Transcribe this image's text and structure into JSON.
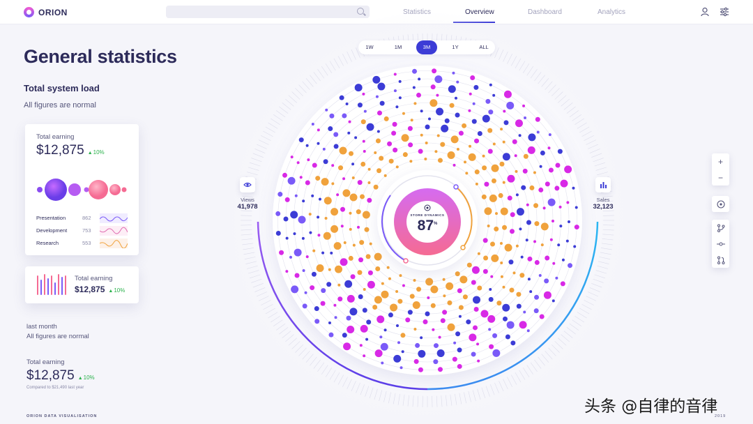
{
  "app": {
    "name": "ORION"
  },
  "nav": [
    {
      "label": "Statistics",
      "active": false
    },
    {
      "label": "Overview",
      "active": true
    },
    {
      "label": "Dashboard",
      "active": false
    },
    {
      "label": "Analytics",
      "active": false
    }
  ],
  "header": {
    "title": "General statistics",
    "subtitle": "Total system load",
    "note": "All figures are normal"
  },
  "earning_card": {
    "label": "Total earning",
    "value": "$12,875",
    "trend": "10%",
    "rows": [
      {
        "label": "Presentation",
        "value": "862"
      },
      {
        "label": "Development",
        "value": "753"
      },
      {
        "label": "Research",
        "value": "553"
      }
    ]
  },
  "earning_card_small": {
    "label": "Total earning",
    "value": "$12,875",
    "trend": "10%"
  },
  "last_month": {
    "label": "last month",
    "note": "All figures are normal"
  },
  "bottom_stat": {
    "label": "Total earning",
    "value": "$12,875",
    "trend": "10%",
    "compare": "Compared to $21,490 last year"
  },
  "periods": [
    {
      "label": "1W",
      "active": false
    },
    {
      "label": "1M",
      "active": false
    },
    {
      "label": "3M",
      "active": true
    },
    {
      "label": "1Y",
      "active": false
    },
    {
      "label": "ALL",
      "active": false
    }
  ],
  "views": {
    "label": "Views",
    "value": "41,978"
  },
  "sales": {
    "label": "Sales",
    "value": "32,123"
  },
  "center": {
    "label": "STORE DYNAMICS",
    "value": "87",
    "unit": "%"
  },
  "tools": [
    "plus-icon",
    "minus-icon",
    "target-icon",
    "branch-icon",
    "commit-icon",
    "pull-request-icon"
  ],
  "footer": {
    "left": "ORION DATA VISUALISATION",
    "right": "2019"
  },
  "watermark": "头条 @自律的音律",
  "colors": {
    "accent": "#3c3cd6",
    "magenta": "#d829e6",
    "orange": "#f0a23c",
    "violet": "#7a5af8",
    "blue": "#3c3cd6",
    "positive": "#2bb24c"
  }
}
